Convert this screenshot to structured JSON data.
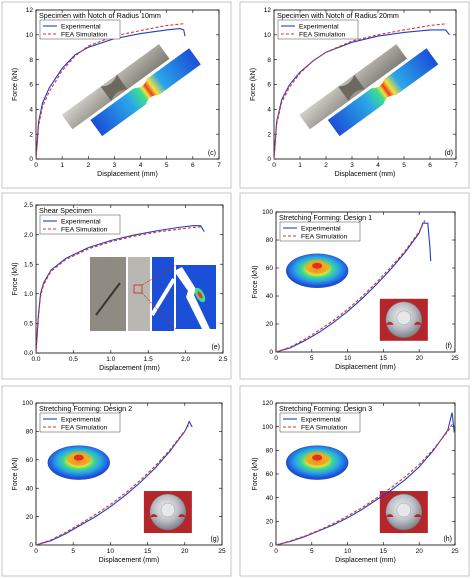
{
  "colors": {
    "experimental": "#1f3fbf",
    "simulation": "#e03030"
  },
  "chart_data": [
    {
      "type": "line",
      "title": "Specimen with Notch of Radius 10mm",
      "panel_label": "(c)",
      "xlabel": "Displacement (mm)",
      "ylabel": "Force (kN)",
      "xlim": [
        0,
        7
      ],
      "ylim": [
        0,
        12
      ],
      "xticks": [
        0,
        1,
        2,
        3,
        4,
        5,
        6,
        7
      ],
      "yticks": [
        0,
        2,
        4,
        6,
        8,
        10,
        12
      ],
      "image_kind": "notch",
      "series": [
        {
          "name": "Experimental",
          "x": [
            0,
            0.1,
            0.25,
            0.5,
            1.0,
            1.5,
            2.0,
            3.0,
            4.0,
            5.0,
            5.5,
            5.65,
            5.7
          ],
          "y": [
            0,
            3.0,
            4.5,
            5.7,
            7.3,
            8.4,
            9.0,
            9.7,
            10.1,
            10.4,
            10.5,
            10.4,
            9.9
          ]
        },
        {
          "name": "FEA Simulation",
          "x": [
            0,
            0.1,
            0.25,
            0.5,
            1.0,
            1.5,
            2.0,
            3.0,
            4.0,
            5.0,
            5.65
          ],
          "y": [
            0,
            2.7,
            4.2,
            5.4,
            7.1,
            8.3,
            9.1,
            9.9,
            10.35,
            10.75,
            10.9
          ]
        }
      ]
    },
    {
      "type": "line",
      "title": "Specimen with Notch of Radius 20mm",
      "panel_label": "(d)",
      "xlabel": "Displacement (mm)",
      "ylabel": "Force (kN)",
      "xlim": [
        0,
        7
      ],
      "ylim": [
        0,
        12
      ],
      "xticks": [
        0,
        1,
        2,
        3,
        4,
        5,
        6,
        7
      ],
      "yticks": [
        0,
        2,
        4,
        6,
        8,
        10,
        12
      ],
      "image_kind": "notch",
      "series": [
        {
          "name": "Experimental",
          "x": [
            0,
            0.1,
            0.3,
            0.6,
            1.0,
            1.5,
            2.0,
            3.0,
            4.0,
            5.0,
            6.0,
            6.6,
            6.75
          ],
          "y": [
            0,
            3.0,
            4.8,
            6.0,
            7.0,
            7.9,
            8.6,
            9.4,
            9.9,
            10.2,
            10.4,
            10.4,
            10.0
          ]
        },
        {
          "name": "FEA Simulation",
          "x": [
            0,
            0.1,
            0.3,
            0.6,
            1.0,
            1.5,
            2.0,
            3.0,
            4.0,
            5.0,
            6.0,
            6.65
          ],
          "y": [
            0,
            2.8,
            4.6,
            5.8,
            6.9,
            7.9,
            8.6,
            9.5,
            10.0,
            10.4,
            10.75,
            10.9
          ]
        }
      ]
    },
    {
      "type": "line",
      "title": "Shear Specimen",
      "panel_label": "(e)",
      "xlabel": "Displacement (mm)",
      "ylabel": "Force (kN)",
      "xlim": [
        0,
        2.5
      ],
      "ylim": [
        0,
        2.5
      ],
      "xticks": [
        0,
        0.5,
        1.0,
        1.5,
        2.0,
        2.5
      ],
      "yticks": [
        0,
        0.5,
        1.0,
        1.5,
        2.0,
        2.5
      ],
      "image_kind": "shear",
      "series": [
        {
          "name": "Experimental",
          "x": [
            0,
            0.03,
            0.06,
            0.1,
            0.2,
            0.4,
            0.7,
            1.0,
            1.3,
            1.6,
            1.9,
            2.1,
            2.2,
            2.25
          ],
          "y": [
            0,
            0.6,
            1.0,
            1.18,
            1.4,
            1.6,
            1.78,
            1.9,
            1.99,
            2.06,
            2.12,
            2.15,
            2.15,
            2.05
          ]
        },
        {
          "name": "FEA Simulation",
          "x": [
            0,
            0.03,
            0.06,
            0.1,
            0.2,
            0.4,
            0.7,
            1.0,
            1.3,
            1.6,
            1.9,
            2.1,
            2.2
          ],
          "y": [
            0,
            0.55,
            0.95,
            1.15,
            1.38,
            1.58,
            1.76,
            1.88,
            1.97,
            2.04,
            2.09,
            2.12,
            2.13
          ]
        }
      ]
    },
    {
      "type": "line",
      "title": "Stretching Forming: Design 1",
      "panel_label": "(f)",
      "xlabel": "Displacement (mm)",
      "ylabel": "Force (kN)",
      "xlim": [
        0,
        25
      ],
      "ylim": [
        0,
        100
      ],
      "xticks": [
        0,
        5,
        10,
        15,
        20,
        25
      ],
      "yticks": [
        0,
        20,
        40,
        60,
        80,
        100
      ],
      "image_kind": "dome",
      "series": [
        {
          "name": "Experimental",
          "x": [
            0,
            2,
            4,
            6,
            8,
            10,
            12,
            14,
            16,
            18,
            20,
            20.5,
            21.2,
            21.5,
            21.6
          ],
          "y": [
            0,
            3,
            8,
            14,
            21,
            29,
            38,
            48,
            59,
            71,
            85,
            92,
            92,
            75,
            65
          ]
        },
        {
          "name": "FEA Simulation",
          "x": [
            0,
            2,
            4,
            6,
            8,
            10,
            12,
            14,
            16,
            18,
            20,
            20.8
          ],
          "y": [
            0,
            3.5,
            9,
            15.5,
            22.5,
            30.5,
            39.5,
            49.5,
            60.5,
            72,
            86,
            94
          ]
        }
      ]
    },
    {
      "type": "line",
      "title": "Stretching Forming: Design 2",
      "panel_label": "(g)",
      "xlabel": "Displacement (mm)",
      "ylabel": "Force (kN)",
      "xlim": [
        0,
        25
      ],
      "ylim": [
        0,
        100
      ],
      "xticks": [
        0,
        5,
        10,
        15,
        20,
        25
      ],
      "yticks": [
        0,
        20,
        40,
        60,
        80,
        100
      ],
      "image_kind": "dome",
      "series": [
        {
          "name": "Experimental",
          "x": [
            0,
            2,
            4,
            6,
            8,
            10,
            12,
            14,
            16,
            18,
            20,
            20.6,
            21
          ],
          "y": [
            0,
            3,
            8,
            14,
            20,
            27,
            35,
            44,
            54,
            66,
            80,
            87,
            83
          ]
        },
        {
          "name": "FEA Simulation",
          "x": [
            0,
            2,
            4,
            6,
            8,
            10,
            12,
            14,
            16,
            18,
            20,
            20.5
          ],
          "y": [
            0,
            3.5,
            9,
            15,
            21.5,
            28.5,
            36.5,
            45.5,
            55.5,
            67,
            80.5,
            84
          ]
        }
      ]
    },
    {
      "type": "line",
      "title": "Stretching Forming: Design 3",
      "panel_label": "(h)",
      "xlabel": "Displacement (mm)",
      "ylabel": "Force (kN)",
      "xlim": [
        0,
        25
      ],
      "ylim": [
        0,
        120
      ],
      "xticks": [
        0,
        5,
        10,
        15,
        20,
        25
      ],
      "yticks": [
        0,
        20,
        40,
        60,
        80,
        100,
        120
      ],
      "image_kind": "dome",
      "series": [
        {
          "name": "Experimental",
          "x": [
            0,
            2,
            4,
            6,
            8,
            10,
            12,
            14,
            16,
            18,
            20,
            22,
            24,
            24.6,
            24.9
          ],
          "y": [
            0,
            3,
            7,
            12,
            17,
            23,
            30,
            38,
            46,
            55,
            66,
            80,
            97,
            112,
            95
          ]
        },
        {
          "name": "FEA Simulation",
          "x": [
            0,
            2,
            4,
            6,
            8,
            10,
            12,
            14,
            16,
            18,
            20,
            22,
            24,
            24.7
          ],
          "y": [
            0,
            3.5,
            7.5,
            12.5,
            18,
            24.5,
            31.5,
            39.5,
            48,
            57.5,
            68,
            81,
            96,
            103
          ]
        }
      ]
    }
  ]
}
